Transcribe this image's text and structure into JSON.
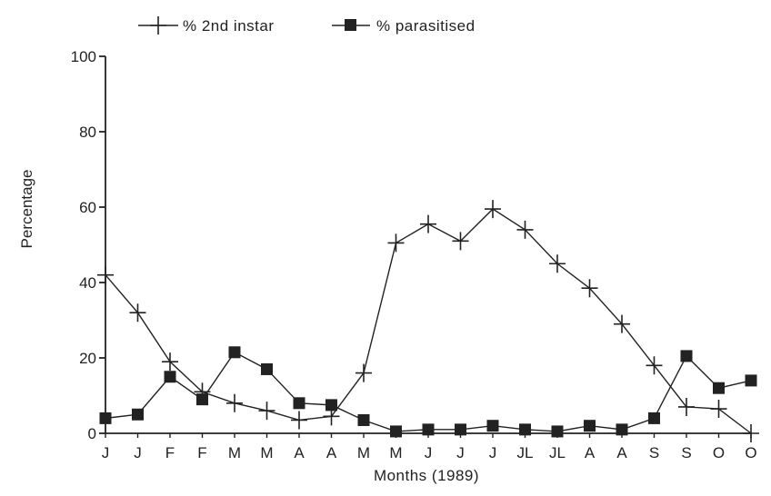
{
  "chart_data": {
    "type": "line",
    "title": "",
    "xlabel": "Months (1989)",
    "ylabel": "Percentage",
    "categories": [
      "J",
      "J",
      "F",
      "F",
      "M",
      "M",
      "A",
      "A",
      "M",
      "M",
      "J",
      "J",
      "J",
      "JL",
      "JL",
      "A",
      "A",
      "S",
      "S",
      "O",
      "O"
    ],
    "ylim": [
      0,
      100
    ],
    "yticks": [
      0,
      20,
      40,
      60,
      80,
      100
    ],
    "grid": false,
    "legend": "top-left",
    "series": [
      {
        "name": "% 2nd instar",
        "marker": "plus",
        "color": "#222222",
        "values": [
          42,
          32,
          19,
          11,
          8,
          6,
          3.5,
          4.5,
          16,
          50.5,
          55.5,
          51,
          59.5,
          54,
          45,
          38.5,
          29,
          18,
          7,
          6.5,
          0
        ]
      },
      {
        "name": "% parasitised",
        "marker": "square",
        "color": "#222222",
        "values": [
          4,
          5,
          15,
          9,
          21.5,
          17,
          8,
          7.5,
          3.5,
          0.5,
          1,
          1,
          2,
          1,
          0.5,
          2,
          1,
          4,
          20.5,
          12,
          14
        ]
      }
    ]
  }
}
